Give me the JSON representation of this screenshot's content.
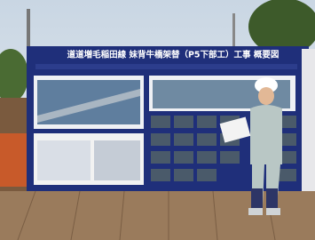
{
  "board": {
    "title": "道道増毛稲田線 妹背牛橋架替（P5下部工）工事 概要図"
  }
}
